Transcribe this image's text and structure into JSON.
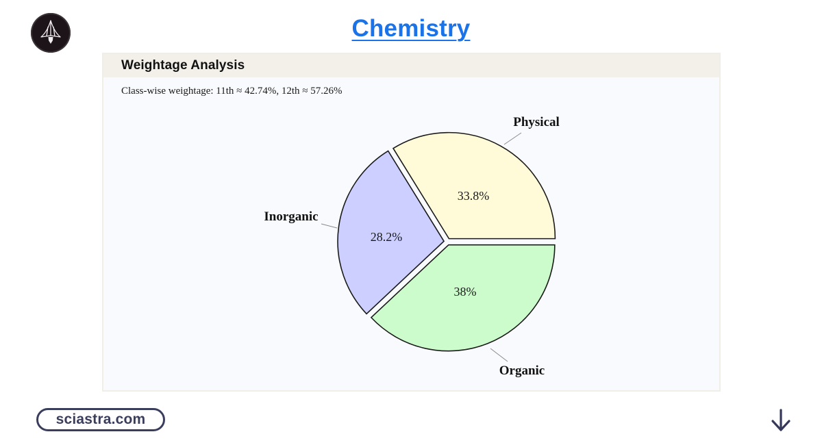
{
  "header": {
    "logo_icon": "rocket-logo-icon",
    "title": "Chemistry",
    "title_color": "#1a73e8"
  },
  "card": {
    "title": "Weightage Analysis",
    "subtitle": "Class-wise weightage: 11th ≈ 42.74%, 12th ≈ 57.26%"
  },
  "chart_data": {
    "type": "pie",
    "title": "Weightage Analysis",
    "subtitle": "Class-wise weightage: 11th ≈ 42.74%, 12th ≈ 57.26%",
    "categories": [
      "Physical",
      "Inorganic",
      "Organic"
    ],
    "values": [
      33.8,
      28.2,
      38
    ],
    "value_labels": [
      "33.8%",
      "28.2%",
      "38%"
    ],
    "colors": [
      "#fffbd8",
      "#cccfff",
      "#ccfccb"
    ],
    "exploded": true,
    "start_angle_deg": 0,
    "direction": "counterclockwise",
    "legend": "none (outside labels with leader lines)"
  },
  "footer": {
    "site": "sciastra.com",
    "scroll_icon": "arrow-down-icon"
  }
}
